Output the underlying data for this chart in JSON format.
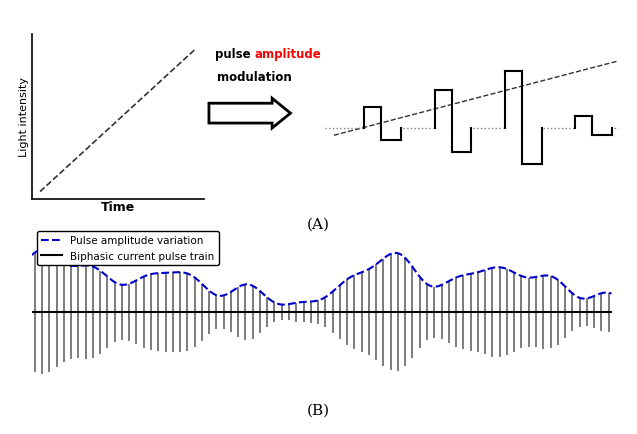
{
  "fig_width": 6.37,
  "fig_height": 4.35,
  "dpi": 100,
  "background_color": "#ffffff",
  "panel_A_label": "(A)",
  "panel_B_label": "(B)",
  "left_plot_xlabel": "Time",
  "left_plot_ylabel": "Light intensity",
  "amplitude_color": "#ff0000",
  "dashed_line_color": "#333333",
  "legend_label_blue": "Pulse amplitude variation",
  "legend_label_black": "Biphasic current pulse train",
  "blue_color": "#0000cc",
  "black_color": "#000000",
  "gray_color": "#555555"
}
